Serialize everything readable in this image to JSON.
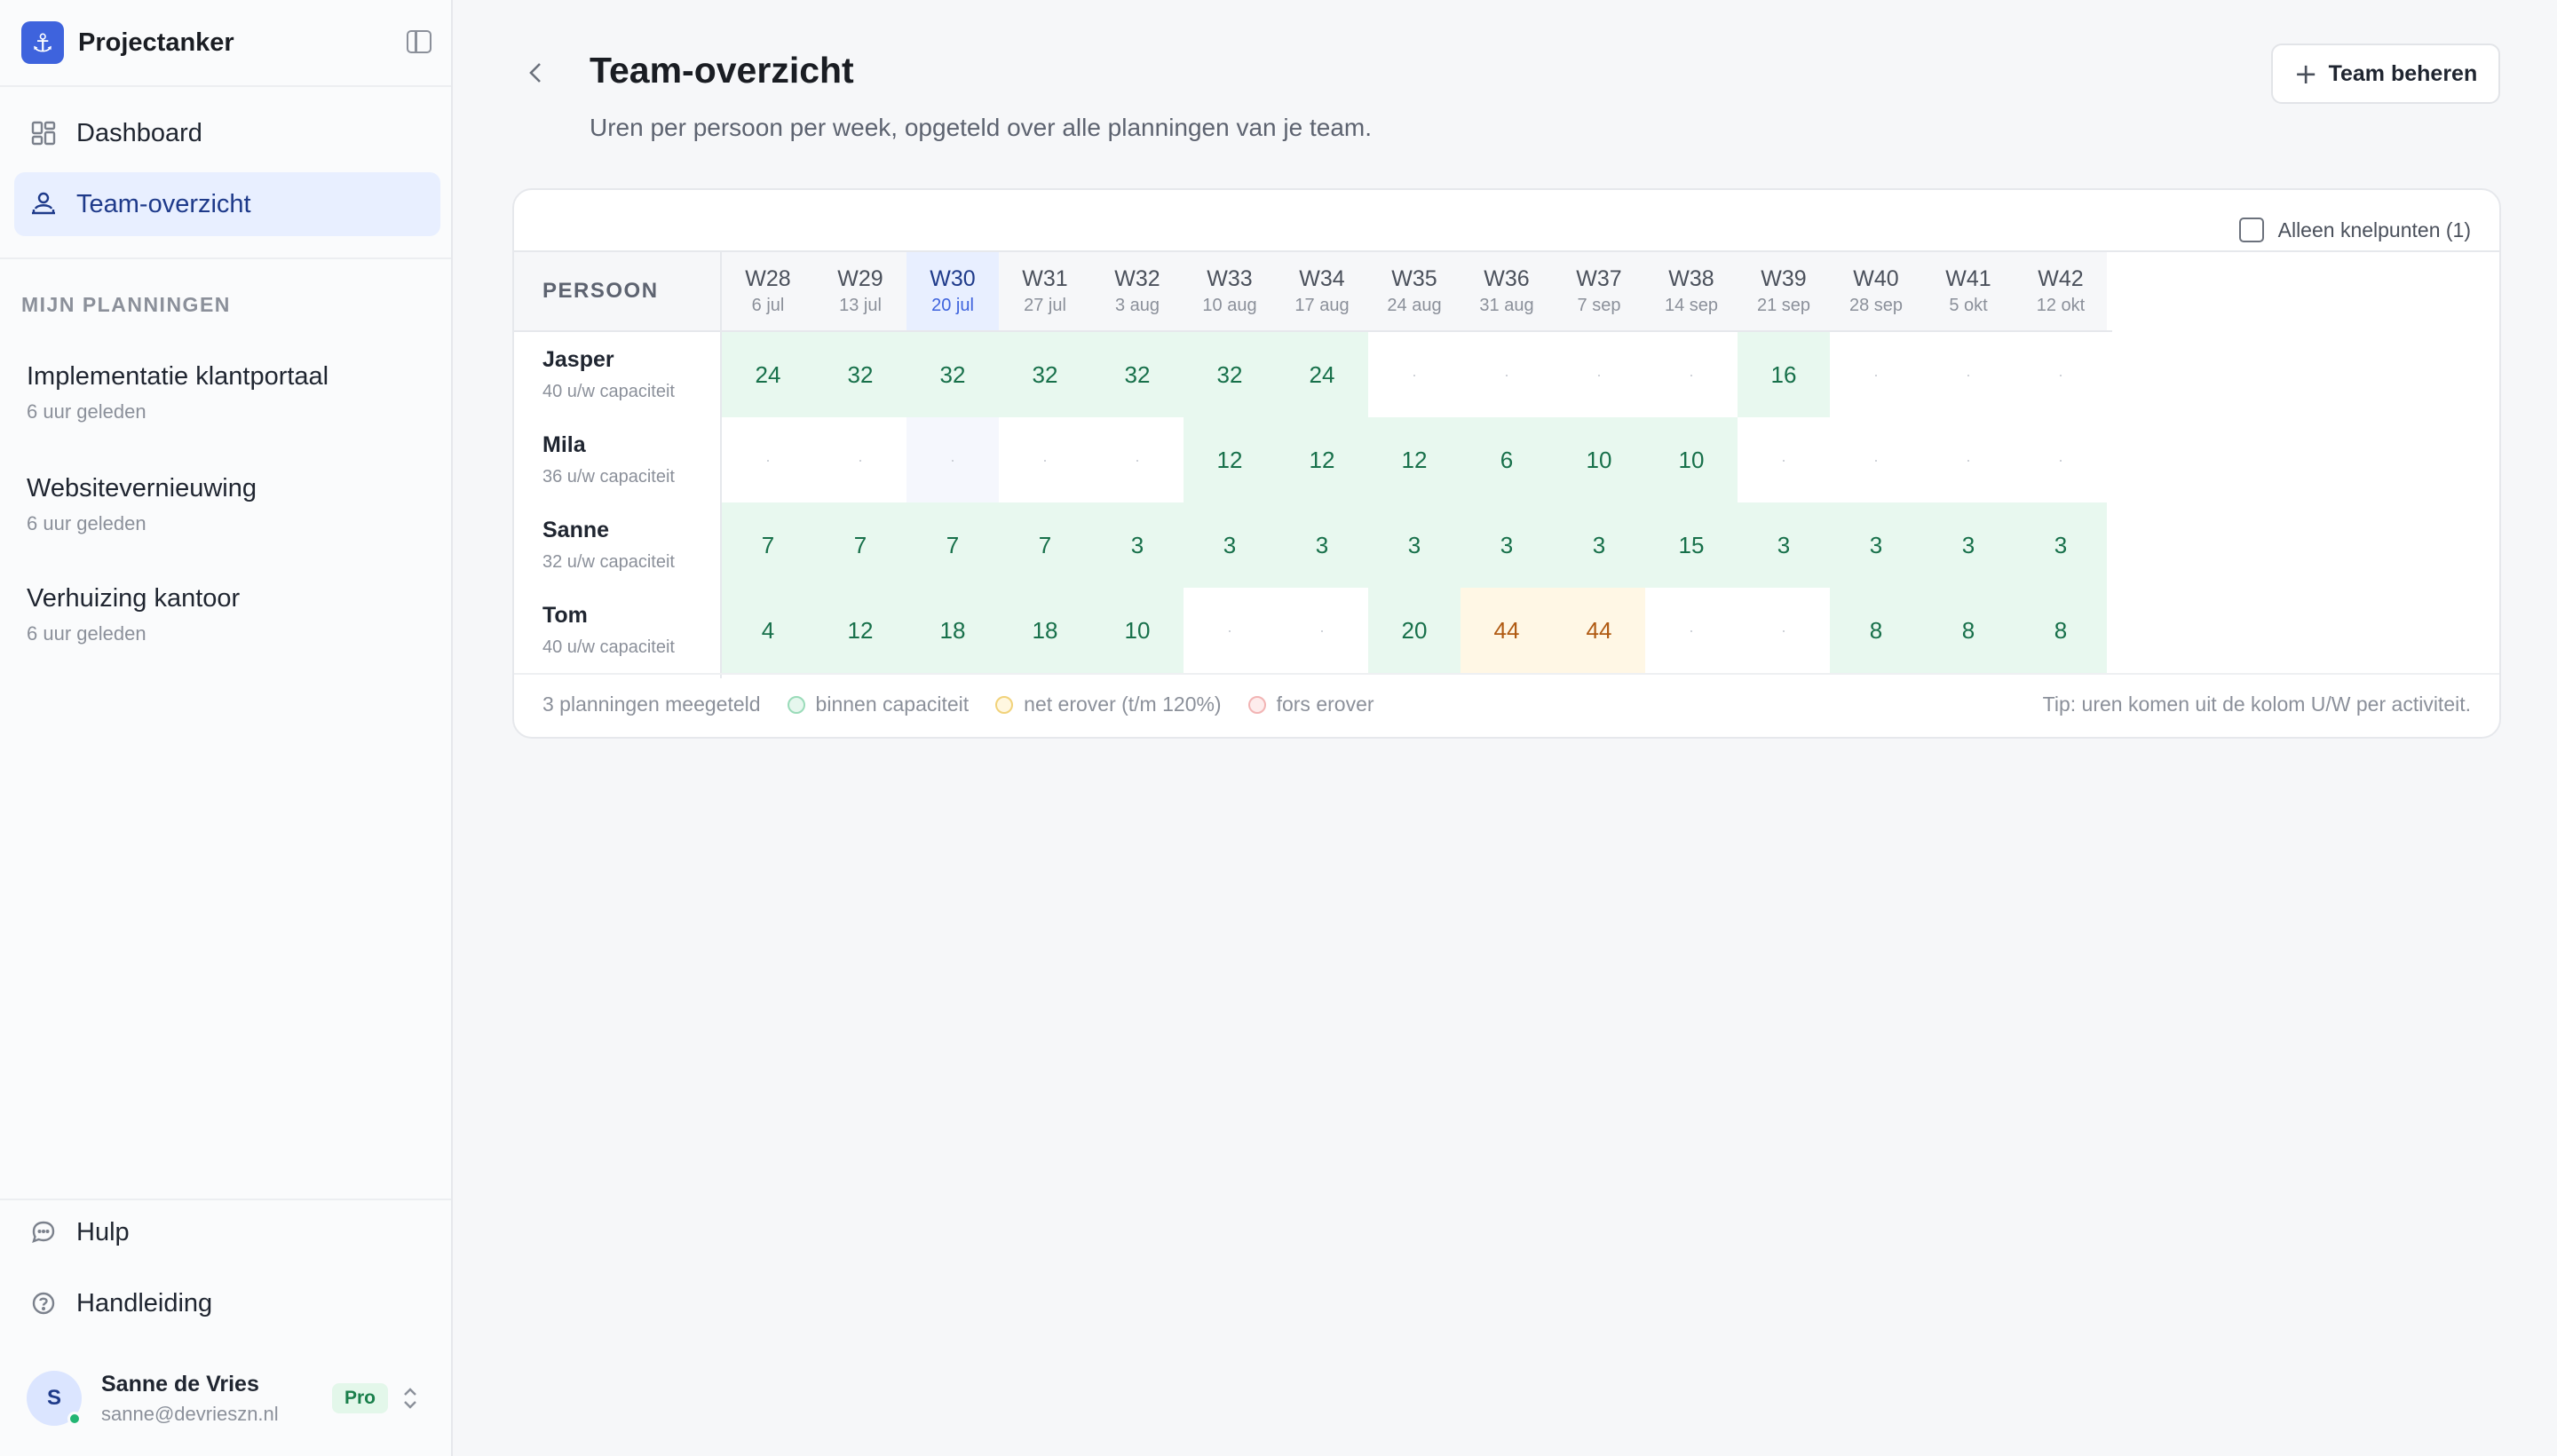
{
  "app": {
    "name": "Projectanker",
    "logo_glyph": "⚓"
  },
  "nav": [
    {
      "label": "Dashboard",
      "icon": "dashboard-grid-icon",
      "active": false
    },
    {
      "label": "Team-overzicht",
      "icon": "team-icon",
      "active": true
    }
  ],
  "plans_section": {
    "label": "MIJN PLANNINGEN",
    "items": [
      {
        "title": "Implementatie klantportaal",
        "sub": "6 uur geleden"
      },
      {
        "title": "Websitevernieuwing",
        "sub": "6 uur geleden"
      },
      {
        "title": "Verhuizing kantoor",
        "sub": "6 uur geleden"
      }
    ]
  },
  "bottom_nav": [
    {
      "label": "Hulp",
      "icon": "chat-bubble-icon"
    },
    {
      "label": "Handleiding",
      "icon": "question-circle-icon"
    }
  ],
  "user": {
    "initial": "S",
    "name": "Sanne de Vries",
    "email": "sanne@devrieszn.nl",
    "plan": "Pro"
  },
  "page": {
    "title": "Team-overzicht",
    "subtitle": "Uren per persoon per week, opgeteld over alle planningen van je team.",
    "team_button": "Team beheren"
  },
  "filter": {
    "label": "Alleen knelpunten (1)",
    "checked": false
  },
  "table": {
    "person_header": "PERSOON",
    "weeks": [
      {
        "num": "W28",
        "date": "6 jul"
      },
      {
        "num": "W29",
        "date": "13 jul"
      },
      {
        "num": "W30",
        "date": "20 jul",
        "current": true
      },
      {
        "num": "W31",
        "date": "27 jul"
      },
      {
        "num": "W32",
        "date": "3 aug"
      },
      {
        "num": "W33",
        "date": "10 aug"
      },
      {
        "num": "W34",
        "date": "17 aug"
      },
      {
        "num": "W35",
        "date": "24 aug"
      },
      {
        "num": "W36",
        "date": "31 aug"
      },
      {
        "num": "W37",
        "date": "7 sep"
      },
      {
        "num": "W38",
        "date": "14 sep"
      },
      {
        "num": "W39",
        "date": "21 sep"
      },
      {
        "num": "W40",
        "date": "28 sep"
      },
      {
        "num": "W41",
        "date": "5 okt"
      },
      {
        "num": "W42",
        "date": "12 okt"
      }
    ],
    "rows": [
      {
        "name": "Jasper",
        "capacity": "40 u/w capaciteit",
        "hours": [
          24,
          32,
          32,
          32,
          32,
          32,
          24,
          null,
          null,
          null,
          null,
          16,
          null,
          null,
          null
        ]
      },
      {
        "name": "Mila",
        "capacity": "36 u/w capaciteit",
        "hours": [
          null,
          null,
          null,
          null,
          null,
          12,
          12,
          12,
          6,
          10,
          10,
          null,
          null,
          null,
          null
        ]
      },
      {
        "name": "Sanne",
        "capacity": "32 u/w capaciteit",
        "hours": [
          7,
          7,
          7,
          7,
          3,
          3,
          3,
          3,
          3,
          3,
          15,
          3,
          3,
          3,
          3
        ]
      },
      {
        "name": "Tom",
        "capacity": "40 u/w capaciteit",
        "hours": [
          4,
          12,
          18,
          18,
          10,
          null,
          null,
          20,
          44,
          44,
          null,
          null,
          8,
          8,
          8
        ]
      }
    ],
    "empty_symbol": "·"
  },
  "legend": {
    "count": "3 planningen meegeteld",
    "within": "binnen capaciteit",
    "slightly_over": "net erover (t/m 120%)",
    "far_over": "fors erover"
  },
  "tip": "Tip: uren komen uit de kolom U/W per activiteit."
}
